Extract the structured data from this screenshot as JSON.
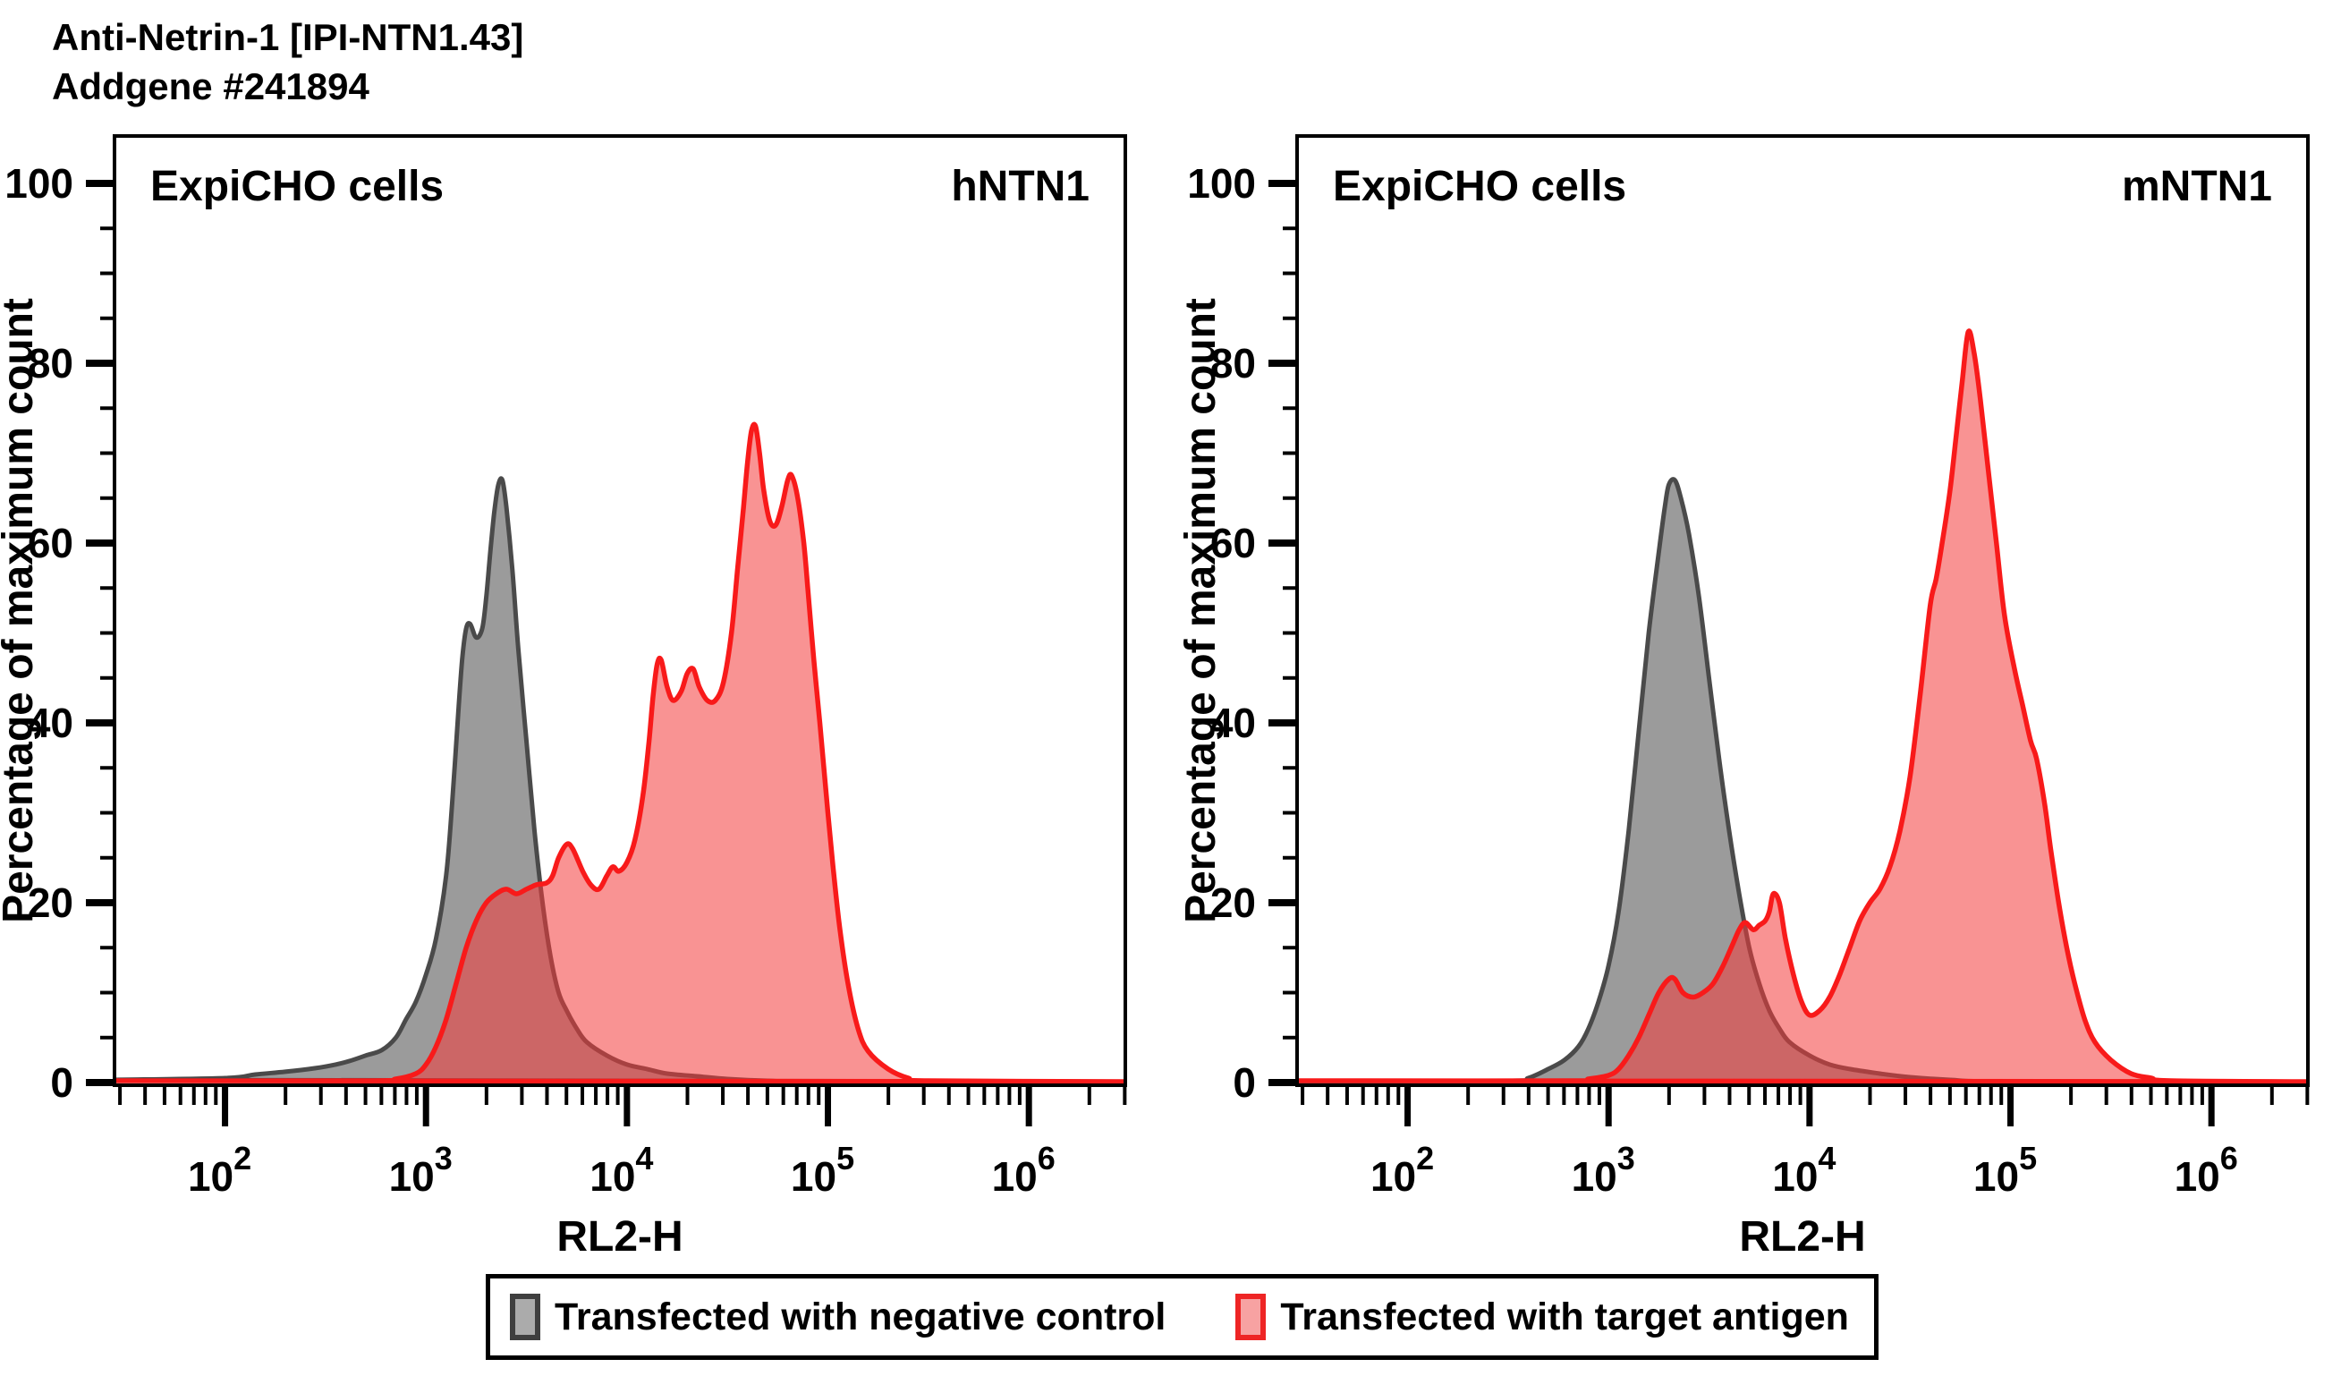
{
  "title_line1": "Anti-Netrin-1 [IPI-NTN1.43]",
  "title_line2": "Addgene #241894",
  "colors": {
    "negative_control_fill": "#9b9b9b",
    "negative_control_stroke": "#4a4a4a",
    "target_antigen_fill": "rgba(244,58,58,0.55)",
    "target_antigen_stroke": "#f81a1a",
    "axis": "#000000"
  },
  "legend": {
    "items": [
      {
        "label": "Transfected with negative control",
        "swatch_fill": "#ababab",
        "swatch_stroke": "#3f3f3f"
      },
      {
        "label": "Transfected with target antigen",
        "swatch_fill": "#f7a2a2",
        "swatch_stroke": "#ee2525"
      }
    ]
  },
  "chart_data": [
    {
      "type": "area",
      "panel": "left",
      "cell_line": "ExpiCHO cells",
      "antigen": "hNTN1",
      "xlabel": "RL2-H",
      "ylabel": "Percentage of maximum count",
      "x_scale": "log10",
      "x_range_log10": [
        1.45,
        6.48
      ],
      "x_major_ticks_exponents": [
        2,
        3,
        4,
        5,
        6
      ],
      "ylim": [
        0,
        100
      ],
      "y_major_ticks": [
        0,
        20,
        40,
        60,
        80,
        100
      ],
      "y_minor_step": 5,
      "grid": false,
      "series": [
        {
          "name": "Transfected with negative control",
          "points_log10x_pct": [
            [
              1.45,
              0.3
            ],
            [
              2.0,
              0.5
            ],
            [
              2.15,
              0.9
            ],
            [
              2.3,
              1.2
            ],
            [
              2.45,
              1.6
            ],
            [
              2.55,
              2.0
            ],
            [
              2.62,
              2.4
            ],
            [
              2.7,
              3.0
            ],
            [
              2.78,
              3.6
            ],
            [
              2.85,
              5.0
            ],
            [
              2.9,
              7.0
            ],
            [
              2.95,
              9.0
            ],
            [
              3.0,
              12.0
            ],
            [
              3.05,
              16.0
            ],
            [
              3.1,
              23.0
            ],
            [
              3.13,
              31.0
            ],
            [
              3.16,
              41.0
            ],
            [
              3.18,
              47.0
            ],
            [
              3.2,
              50.5
            ],
            [
              3.22,
              51.0
            ],
            [
              3.25,
              49.5
            ],
            [
              3.28,
              50.5
            ],
            [
              3.3,
              54.0
            ],
            [
              3.32,
              59.0
            ],
            [
              3.34,
              63.5
            ],
            [
              3.36,
              66.5
            ],
            [
              3.38,
              67.0
            ],
            [
              3.4,
              64.0
            ],
            [
              3.43,
              57.0
            ],
            [
              3.46,
              48.0
            ],
            [
              3.5,
              38.0
            ],
            [
              3.54,
              28.0
            ],
            [
              3.58,
              20.0
            ],
            [
              3.62,
              14.0
            ],
            [
              3.66,
              10.0
            ],
            [
              3.7,
              8.0
            ],
            [
              3.75,
              6.0
            ],
            [
              3.8,
              4.5
            ],
            [
              3.9,
              3.0
            ],
            [
              4.0,
              2.0
            ],
            [
              4.1,
              1.5
            ],
            [
              4.2,
              1.0
            ],
            [
              4.35,
              0.7
            ],
            [
              4.5,
              0.4
            ],
            [
              4.7,
              0.2
            ],
            [
              5.0,
              0.1
            ],
            [
              6.48,
              0.1
            ]
          ]
        },
        {
          "name": "Transfected with target antigen",
          "points_log10x_pct": [
            [
              1.45,
              0.2
            ],
            [
              2.7,
              0.2
            ],
            [
              2.85,
              0.4
            ],
            [
              2.95,
              1.0
            ],
            [
              3.0,
              2.0
            ],
            [
              3.05,
              4.0
            ],
            [
              3.1,
              7.0
            ],
            [
              3.15,
              11.0
            ],
            [
              3.2,
              15.0
            ],
            [
              3.25,
              18.0
            ],
            [
              3.3,
              20.0
            ],
            [
              3.35,
              21.0
            ],
            [
              3.4,
              21.5
            ],
            [
              3.45,
              21.0
            ],
            [
              3.5,
              21.5
            ],
            [
              3.55,
              22.0
            ],
            [
              3.6,
              22.2
            ],
            [
              3.63,
              23.0
            ],
            [
              3.66,
              25.0
            ],
            [
              3.7,
              26.5
            ],
            [
              3.73,
              26.0
            ],
            [
              3.78,
              23.5
            ],
            [
              3.82,
              22.0
            ],
            [
              3.86,
              21.5
            ],
            [
              3.9,
              23.0
            ],
            [
              3.93,
              24.0
            ],
            [
              3.96,
              23.5
            ],
            [
              4.0,
              24.5
            ],
            [
              4.04,
              27.0
            ],
            [
              4.08,
              32.0
            ],
            [
              4.11,
              38.0
            ],
            [
              4.13,
              43.0
            ],
            [
              4.15,
              46.5
            ],
            [
              4.17,
              47.0
            ],
            [
              4.2,
              44.0
            ],
            [
              4.23,
              42.5
            ],
            [
              4.27,
              43.5
            ],
            [
              4.3,
              45.5
            ],
            [
              4.33,
              46.0
            ],
            [
              4.36,
              44.0
            ],
            [
              4.4,
              42.5
            ],
            [
              4.44,
              42.5
            ],
            [
              4.48,
              44.5
            ],
            [
              4.52,
              50.0
            ],
            [
              4.55,
              57.0
            ],
            [
              4.58,
              64.0
            ],
            [
              4.6,
              69.0
            ],
            [
              4.62,
              72.5
            ],
            [
              4.64,
              73.0
            ],
            [
              4.66,
              70.0
            ],
            [
              4.68,
              66.0
            ],
            [
              4.71,
              62.5
            ],
            [
              4.74,
              62.0
            ],
            [
              4.77,
              64.0
            ],
            [
              4.8,
              67.0
            ],
            [
              4.82,
              67.5
            ],
            [
              4.85,
              65.0
            ],
            [
              4.88,
              60.0
            ],
            [
              4.9,
              55.0
            ],
            [
              4.93,
              47.0
            ],
            [
              4.96,
              40.0
            ],
            [
              5.0,
              30.0
            ],
            [
              5.03,
              23.0
            ],
            [
              5.06,
              17.0
            ],
            [
              5.1,
              11.0
            ],
            [
              5.15,
              6.0
            ],
            [
              5.2,
              3.5
            ],
            [
              5.3,
              1.5
            ],
            [
              5.4,
              0.5
            ],
            [
              5.5,
              0.2
            ],
            [
              6.48,
              0.1
            ]
          ]
        }
      ]
    },
    {
      "type": "area",
      "panel": "right",
      "cell_line": "ExpiCHO cells",
      "antigen": "mNTN1",
      "xlabel": "RL2-H",
      "ylabel": "Percentage of maximum count",
      "x_scale": "log10",
      "x_range_log10": [
        1.45,
        6.48
      ],
      "x_major_ticks_exponents": [
        2,
        3,
        4,
        5,
        6
      ],
      "ylim": [
        0,
        100
      ],
      "y_major_ticks": [
        0,
        20,
        40,
        60,
        80,
        100
      ],
      "y_minor_step": 5,
      "grid": false,
      "series": [
        {
          "name": "Transfected with negative control",
          "points_log10x_pct": [
            [
              1.45,
              0.1
            ],
            [
              2.5,
              0.2
            ],
            [
              2.6,
              0.5
            ],
            [
              2.7,
              1.5
            ],
            [
              2.78,
              2.5
            ],
            [
              2.85,
              4.0
            ],
            [
              2.9,
              6.0
            ],
            [
              2.95,
              9.0
            ],
            [
              3.0,
              13.0
            ],
            [
              3.05,
              19.0
            ],
            [
              3.1,
              28.0
            ],
            [
              3.15,
              39.0
            ],
            [
              3.2,
              50.0
            ],
            [
              3.25,
              59.0
            ],
            [
              3.28,
              64.0
            ],
            [
              3.3,
              66.5
            ],
            [
              3.33,
              67.0
            ],
            [
              3.36,
              65.0
            ],
            [
              3.4,
              61.0
            ],
            [
              3.45,
              54.0
            ],
            [
              3.5,
              45.0
            ],
            [
              3.55,
              36.0
            ],
            [
              3.6,
              28.0
            ],
            [
              3.65,
              21.0
            ],
            [
              3.7,
              15.0
            ],
            [
              3.75,
              11.0
            ],
            [
              3.8,
              8.0
            ],
            [
              3.85,
              6.0
            ],
            [
              3.9,
              4.5
            ],
            [
              4.0,
              3.0
            ],
            [
              4.1,
              2.0
            ],
            [
              4.2,
              1.5
            ],
            [
              4.35,
              1.0
            ],
            [
              4.5,
              0.6
            ],
            [
              4.7,
              0.3
            ],
            [
              5.0,
              0.1
            ],
            [
              6.48,
              0.1
            ]
          ]
        },
        {
          "name": "Transfected with target antigen",
          "points_log10x_pct": [
            [
              1.45,
              0.2
            ],
            [
              2.8,
              0.2
            ],
            [
              2.9,
              0.4
            ],
            [
              3.0,
              0.8
            ],
            [
              3.05,
              1.5
            ],
            [
              3.1,
              3.0
            ],
            [
              3.15,
              5.0
            ],
            [
              3.2,
              7.5
            ],
            [
              3.25,
              10.0
            ],
            [
              3.3,
              11.5
            ],
            [
              3.33,
              11.5
            ],
            [
              3.37,
              10.0
            ],
            [
              3.42,
              9.5
            ],
            [
              3.47,
              10.0
            ],
            [
              3.52,
              11.0
            ],
            [
              3.57,
              13.0
            ],
            [
              3.62,
              15.5
            ],
            [
              3.65,
              17.0
            ],
            [
              3.68,
              17.8
            ],
            [
              3.72,
              17.0
            ],
            [
              3.75,
              17.5
            ],
            [
              3.78,
              18.0
            ],
            [
              3.8,
              19.0
            ],
            [
              3.82,
              21.0
            ],
            [
              3.85,
              20.0
            ],
            [
              3.88,
              16.0
            ],
            [
              3.92,
              12.0
            ],
            [
              3.96,
              9.0
            ],
            [
              4.0,
              7.5
            ],
            [
              4.05,
              8.0
            ],
            [
              4.1,
              9.5
            ],
            [
              4.15,
              12.0
            ],
            [
              4.2,
              15.0
            ],
            [
              4.25,
              18.0
            ],
            [
              4.3,
              20.0
            ],
            [
              4.35,
              21.5
            ],
            [
              4.4,
              24.0
            ],
            [
              4.45,
              28.0
            ],
            [
              4.5,
              34.0
            ],
            [
              4.55,
              43.0
            ],
            [
              4.6,
              53.0
            ],
            [
              4.63,
              56.0
            ],
            [
              4.66,
              60.0
            ],
            [
              4.7,
              66.0
            ],
            [
              4.73,
              72.0
            ],
            [
              4.76,
              78.0
            ],
            [
              4.79,
              83.5
            ],
            [
              4.82,
              81.0
            ],
            [
              4.85,
              76.0
            ],
            [
              4.89,
              68.0
            ],
            [
              4.93,
              60.0
            ],
            [
              4.97,
              52.0
            ],
            [
              5.02,
              46.0
            ],
            [
              5.06,
              42.0
            ],
            [
              5.1,
              38.0
            ],
            [
              5.13,
              36.0
            ],
            [
              5.17,
              31.0
            ],
            [
              5.2,
              26.0
            ],
            [
              5.24,
              20.0
            ],
            [
              5.28,
              15.0
            ],
            [
              5.32,
              11.0
            ],
            [
              5.37,
              7.0
            ],
            [
              5.42,
              4.5
            ],
            [
              5.5,
              2.5
            ],
            [
              5.6,
              1.0
            ],
            [
              5.7,
              0.5
            ],
            [
              5.8,
              0.2
            ],
            [
              6.48,
              0.1
            ]
          ]
        }
      ]
    }
  ]
}
